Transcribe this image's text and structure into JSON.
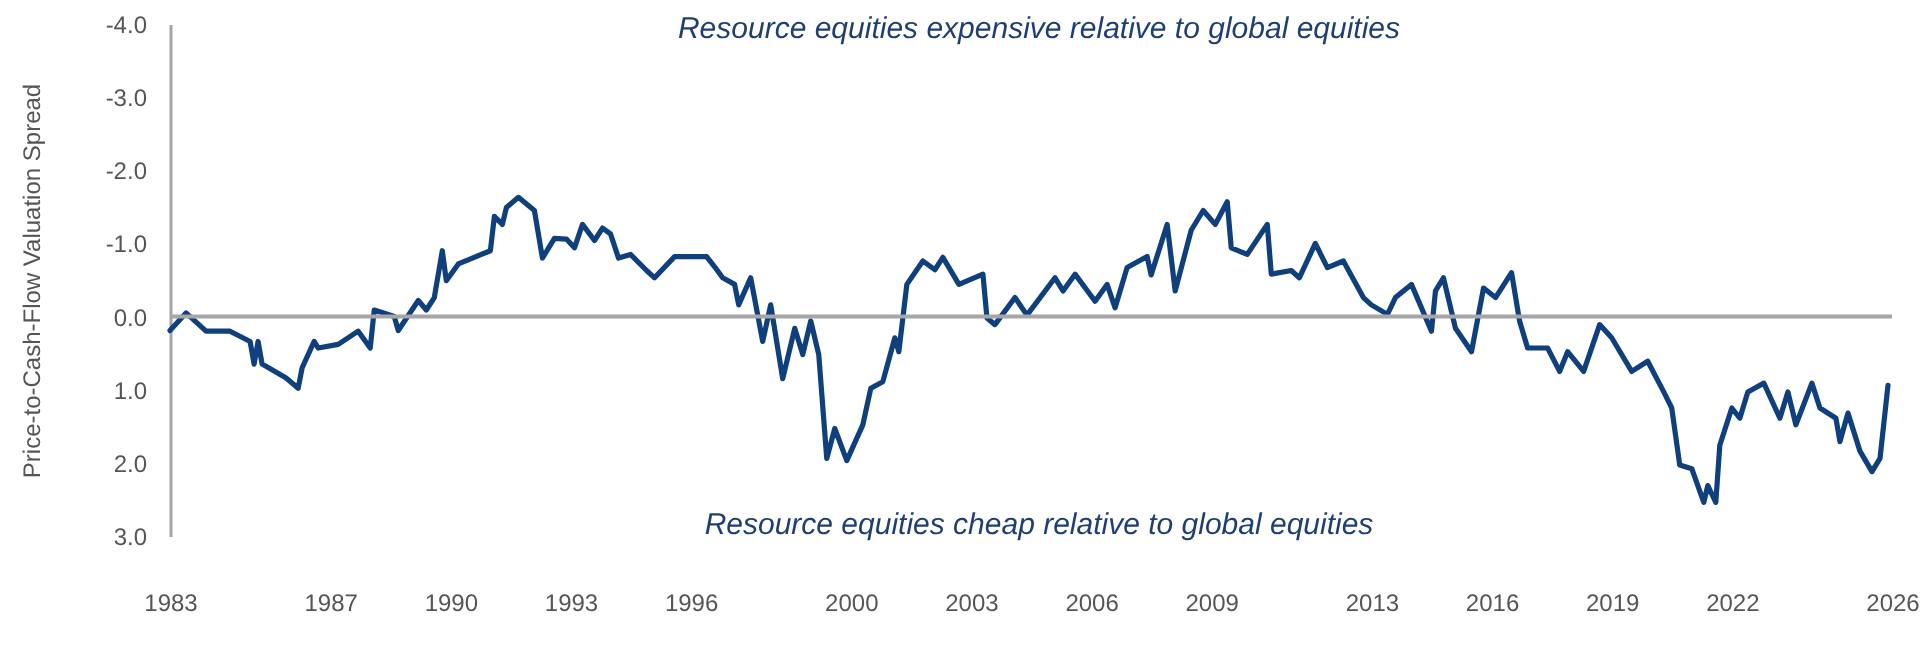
{
  "chart_data": {
    "type": "line",
    "ylabel": "Price-to-Cash-Flow Valuation Spread",
    "annotations": [
      "Resource equities expensive relative to global equities",
      "Resource equities cheap relative to global equities"
    ],
    "xlim": [
      1983,
      2026
    ],
    "xticks": [
      1983,
      1987,
      1990,
      1993,
      1996,
      2000,
      2003,
      2006,
      2009,
      2013,
      2016,
      2019,
      2022,
      2026
    ],
    "ylim": [
      3,
      -4
    ],
    "yticks": [
      {
        "value": -4,
        "label": "-4.0"
      },
      {
        "value": -3,
        "label": "-3.0"
      },
      {
        "value": -2,
        "label": "-2.0"
      },
      {
        "value": -1,
        "label": "-1.0"
      },
      {
        "value": 0,
        "label": "0.0"
      },
      {
        "value": 1,
        "label": "1.0"
      },
      {
        "value": 2,
        "label": "2.0"
      },
      {
        "value": 3,
        "label": "3.0"
      }
    ],
    "ref_lines": [
      {
        "axis": "y",
        "value": 0,
        "color": "#a6a6a6"
      }
    ],
    "series": [
      {
        "color": "#0f3f7d",
        "x": [
          1983.0,
          1983.4,
          1983.9,
          1984.5,
          1985.0,
          1985.1,
          1985.2,
          1985.3,
          1985.9,
          1986.2,
          1986.3,
          1986.6,
          1986.7,
          1987.2,
          1987.7,
          1988.0,
          1988.1,
          1988.6,
          1988.7,
          1989.2,
          1989.4,
          1989.6,
          1989.8,
          1989.9,
          1990.2,
          1991.0,
          1991.1,
          1991.3,
          1991.4,
          1991.7,
          1992.1,
          1992.3,
          1992.6,
          1992.9,
          1993.1,
          1993.3,
          1993.6,
          1993.8,
          1994.0,
          1994.2,
          1994.5,
          1994.9,
          1995.1,
          1995.6,
          1996.4,
          1996.6,
          1996.8,
          1997.1,
          1997.2,
          1997.5,
          1997.8,
          1998.0,
          1998.3,
          1998.6,
          1998.8,
          1999.0,
          1999.2,
          1999.4,
          1999.6,
          1999.9,
          2000.3,
          2000.5,
          2000.8,
          2001.1,
          2001.2,
          2001.4,
          2001.8,
          2002.1,
          2002.3,
          2002.7,
          2003.3,
          2003.4,
          2003.6,
          2004.1,
          2004.4,
          2005.1,
          2005.3,
          2005.6,
          2006.1,
          2006.4,
          2006.6,
          2006.9,
          2007.4,
          2007.5,
          2007.9,
          2008.1,
          2008.5,
          2008.8,
          2009.1,
          2009.4,
          2009.5,
          2009.9,
          2010.4,
          2010.5,
          2011.0,
          2011.2,
          2011.6,
          2011.9,
          2012.3,
          2012.8,
          2013.0,
          2013.4,
          2013.6,
          2014.0,
          2014.5,
          2014.6,
          2014.8,
          2015.1,
          2015.5,
          2015.8,
          2016.1,
          2016.5,
          2016.7,
          2016.9,
          2017.4,
          2017.7,
          2017.9,
          2018.3,
          2018.7,
          2019.0,
          2019.5,
          2019.9,
          2020.3,
          2020.5,
          2020.7,
          2021.0,
          2021.3,
          2021.4,
          2021.6,
          2021.7,
          2022.0,
          2022.2,
          2022.4,
          2022.8,
          2023.2,
          2023.4,
          2023.6,
          2024.0,
          2024.2,
          2024.6,
          2024.7,
          2024.9,
          2025.2,
          2025.5,
          2025.7,
          2025.9
        ],
        "values": [
          0.19,
          -0.05,
          0.2,
          0.2,
          0.34,
          0.65,
          0.34,
          0.65,
          0.84,
          0.98,
          0.7,
          0.34,
          0.43,
          0.38,
          0.2,
          0.43,
          -0.09,
          0,
          0.19,
          -0.22,
          -0.09,
          -0.26,
          -0.9,
          -0.49,
          -0.72,
          -0.9,
          -1.37,
          -1.26,
          -1.49,
          -1.63,
          -1.45,
          -0.8,
          -1.07,
          -1.06,
          -0.94,
          -1.26,
          -1.04,
          -1.21,
          -1.13,
          -0.8,
          -0.85,
          -0.63,
          -0.53,
          -0.82,
          -0.82,
          -0.68,
          -0.53,
          -0.44,
          -0.16,
          -0.53,
          0.34,
          -0.16,
          0.85,
          0.16,
          0.52,
          0.06,
          0.52,
          1.94,
          1.53,
          1.97,
          1.48,
          0.98,
          0.89,
          0.29,
          0.48,
          -0.44,
          -0.76,
          -0.64,
          -0.81,
          -0.44,
          -0.58,
          0.02,
          0.11,
          -0.26,
          -0.02,
          -0.53,
          -0.35,
          -0.58,
          -0.21,
          -0.44,
          -0.12,
          -0.67,
          -0.82,
          -0.57,
          -1.26,
          -0.35,
          -1.18,
          -1.45,
          -1.26,
          -1.57,
          -0.94,
          -0.85,
          -1.26,
          -0.58,
          -0.63,
          -0.53,
          -1.0,
          -0.67,
          -0.76,
          -0.26,
          -0.16,
          -0.03,
          -0.26,
          -0.44,
          0.2,
          -0.35,
          -0.53,
          0.16,
          0.48,
          -0.39,
          -0.26,
          -0.6,
          0.06,
          0.43,
          0.43,
          0.75,
          0.48,
          0.75,
          0.11,
          0.29,
          0.75,
          0.61,
          1.03,
          1.25,
          2.03,
          2.08,
          2.54,
          2.31,
          2.54,
          1.76,
          1.25,
          1.39,
          1.03,
          0.91,
          1.39,
          1.03,
          1.48,
          0.91,
          1.25,
          1.39,
          1.71,
          1.32,
          1.84,
          2.12,
          1.94,
          0.94
        ]
      }
    ]
  }
}
